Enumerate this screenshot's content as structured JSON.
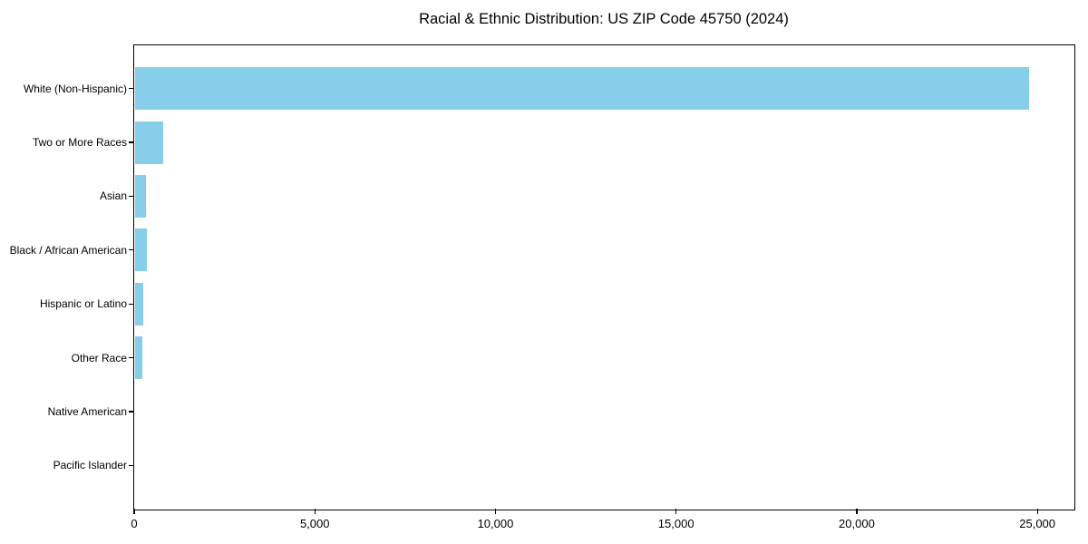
{
  "chart_data": {
    "type": "bar",
    "orientation": "horizontal",
    "title": "Racial & Ethnic Distribution: US ZIP Code 45750 (2024)",
    "categories": [
      "White (Non-Hispanic)",
      "Two or More Races",
      "Asian",
      "Black / African American",
      "Hispanic or Latino",
      "Other Race",
      "Native American",
      "Pacific Islander"
    ],
    "values": [
      24750,
      780,
      300,
      320,
      235,
      190,
      0,
      0
    ],
    "xlabel": "",
    "ylabel": "",
    "xlim": [
      0,
      26000
    ],
    "x_ticks": [
      0,
      5000,
      10000,
      15000,
      20000,
      25000
    ],
    "x_tick_labels": [
      "0",
      "5,000",
      "10,000",
      "15,000",
      "20,000",
      "25,000"
    ],
    "grid": false,
    "legend": null,
    "bar_color": "#87CEEB",
    "text_color": "#000000",
    "border_color": "#000000",
    "background_color": "#FFFFFF"
  }
}
